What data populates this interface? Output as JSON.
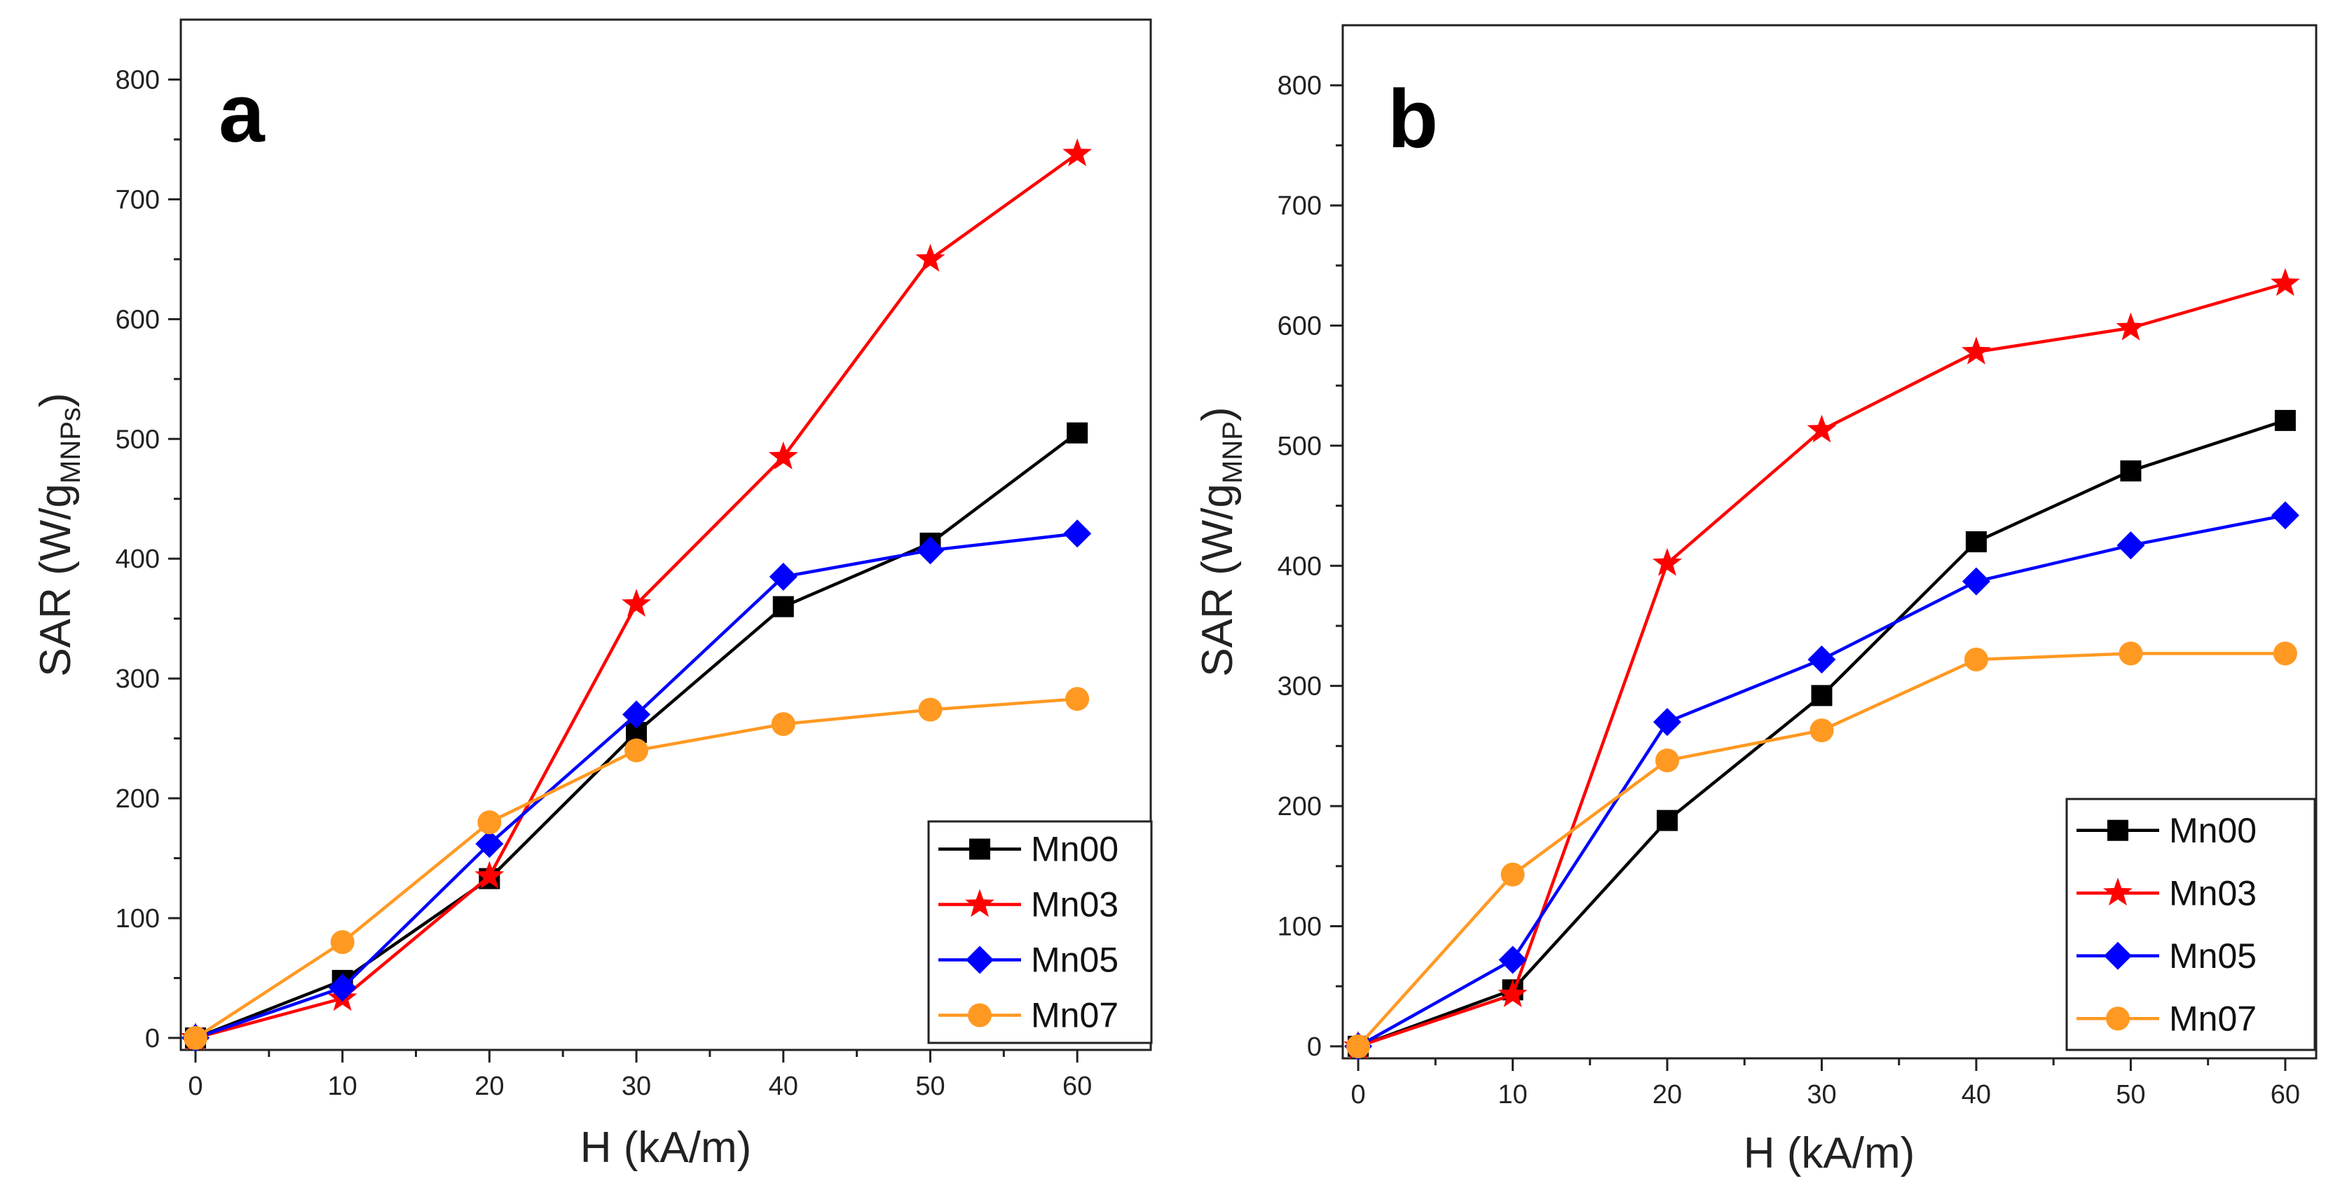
{
  "chart_data": [
    {
      "type": "line",
      "panel_label": "a",
      "xlabel": "H (kA/m)",
      "ylabel_main": "SAR (W/g",
      "ylabel_sub": "MNPs",
      "ylabel_close": ")",
      "xlim": [
        -1,
        65
      ],
      "ylim": [
        -10,
        850
      ],
      "xticks": [
        0,
        10,
        20,
        30,
        40,
        50,
        60
      ],
      "yticks": [
        0,
        100,
        200,
        300,
        400,
        500,
        600,
        700,
        800
      ],
      "x": [
        0,
        10,
        20,
        30,
        40,
        50,
        60
      ],
      "legend_position": "bottom-right",
      "series": [
        {
          "name": "Mn00",
          "color": "#000000",
          "marker": "square",
          "values": [
            0,
            48,
            133,
            255,
            360,
            413,
            505
          ]
        },
        {
          "name": "Mn03",
          "color": "#ff0000",
          "marker": "star",
          "values": [
            0,
            33,
            135,
            362,
            485,
            650,
            738
          ]
        },
        {
          "name": "Mn05",
          "color": "#0000ff",
          "marker": "diamond",
          "values": [
            0,
            42,
            162,
            270,
            385,
            407,
            421
          ]
        },
        {
          "name": "Mn07",
          "color": "#ff9922",
          "marker": "circle",
          "values": [
            0,
            80,
            180,
            240,
            262,
            274,
            283
          ]
        }
      ]
    },
    {
      "type": "line",
      "panel_label": "b",
      "xlabel": "H (kA/m)",
      "ylabel_main": "SAR (W/g",
      "ylabel_sub": "MNP",
      "ylabel_close": ")",
      "xlim": [
        -1,
        62
      ],
      "ylim": [
        -10,
        850
      ],
      "xticks": [
        0,
        10,
        20,
        30,
        40,
        50,
        60
      ],
      "yticks": [
        0,
        100,
        200,
        300,
        400,
        500,
        600,
        700,
        800
      ],
      "x": [
        0,
        10,
        20,
        30,
        40,
        50,
        60
      ],
      "legend_position": "bottom-right",
      "series": [
        {
          "name": "Mn00",
          "color": "#000000",
          "marker": "square",
          "values": [
            0,
            47,
            188,
            292,
            420,
            479,
            521
          ]
        },
        {
          "name": "Mn03",
          "color": "#ff0000",
          "marker": "star",
          "values": [
            0,
            43,
            402,
            513,
            578,
            598,
            635
          ]
        },
        {
          "name": "Mn05",
          "color": "#0000ff",
          "marker": "diamond",
          "values": [
            0,
            72,
            270,
            322,
            387,
            417,
            442
          ]
        },
        {
          "name": "Mn07",
          "color": "#ff9922",
          "marker": "circle",
          "values": [
            0,
            143,
            238,
            263,
            322,
            327,
            327
          ]
        }
      ]
    }
  ]
}
